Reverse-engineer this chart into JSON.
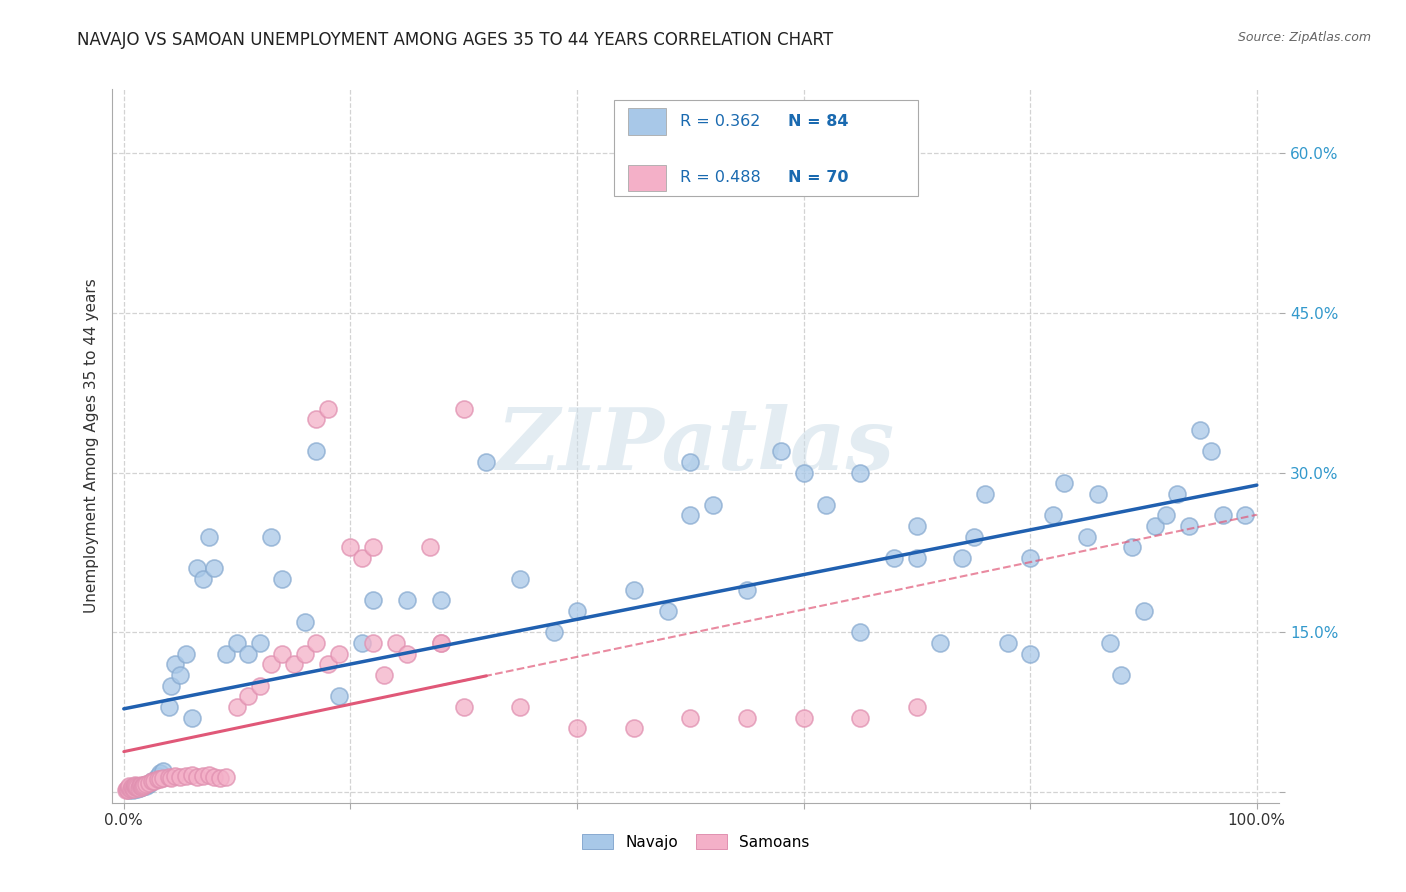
{
  "title": "NAVAJO VS SAMOAN UNEMPLOYMENT AMONG AGES 35 TO 44 YEARS CORRELATION CHART",
  "source": "Source: ZipAtlas.com",
  "ylabel": "Unemployment Among Ages 35 to 44 years",
  "xlim": [
    -0.01,
    1.02
  ],
  "ylim": [
    -0.01,
    0.66
  ],
  "navajo_R": 0.362,
  "navajo_N": 84,
  "samoan_R": 0.488,
  "samoan_N": 70,
  "navajo_color": "#a8c8e8",
  "navajo_edge": "#88aad0",
  "samoan_color": "#f4b0c8",
  "samoan_edge": "#e090b0",
  "navajo_line_color": "#2060b0",
  "samoan_line_color": "#e05878",
  "background_color": "#ffffff",
  "grid_color": "#c8c8c8",
  "navajo_x": [
    0.005,
    0.005,
    0.006,
    0.007,
    0.008,
    0.01,
    0.01,
    0.012,
    0.013,
    0.014,
    0.015,
    0.016,
    0.018,
    0.02,
    0.022,
    0.025,
    0.028,
    0.03,
    0.032,
    0.035,
    0.04,
    0.042,
    0.045,
    0.05,
    0.055,
    0.06,
    0.065,
    0.07,
    0.075,
    0.08,
    0.09,
    0.1,
    0.11,
    0.12,
    0.13,
    0.14,
    0.16,
    0.17,
    0.19,
    0.21,
    0.22,
    0.25,
    0.28,
    0.35,
    0.38,
    0.4,
    0.45,
    0.48,
    0.5,
    0.52,
    0.55,
    0.58,
    0.6,
    0.62,
    0.65,
    0.65,
    0.68,
    0.7,
    0.7,
    0.72,
    0.74,
    0.75,
    0.76,
    0.78,
    0.8,
    0.8,
    0.82,
    0.83,
    0.85,
    0.86,
    0.87,
    0.88,
    0.89,
    0.9,
    0.91,
    0.92,
    0.93,
    0.94,
    0.95,
    0.96,
    0.97,
    0.99,
    0.5,
    0.32
  ],
  "navajo_y": [
    0.002,
    0.004,
    0.003,
    0.005,
    0.002,
    0.004,
    0.006,
    0.003,
    0.005,
    0.004,
    0.006,
    0.005,
    0.007,
    0.006,
    0.008,
    0.01,
    0.012,
    0.015,
    0.018,
    0.02,
    0.08,
    0.1,
    0.12,
    0.11,
    0.13,
    0.07,
    0.21,
    0.2,
    0.24,
    0.21,
    0.13,
    0.14,
    0.13,
    0.14,
    0.24,
    0.2,
    0.16,
    0.32,
    0.09,
    0.14,
    0.18,
    0.18,
    0.18,
    0.2,
    0.15,
    0.17,
    0.19,
    0.17,
    0.26,
    0.27,
    0.19,
    0.32,
    0.3,
    0.27,
    0.15,
    0.3,
    0.22,
    0.22,
    0.25,
    0.14,
    0.22,
    0.24,
    0.28,
    0.14,
    0.13,
    0.22,
    0.26,
    0.29,
    0.24,
    0.28,
    0.14,
    0.11,
    0.23,
    0.17,
    0.25,
    0.26,
    0.28,
    0.25,
    0.34,
    0.32,
    0.26,
    0.26,
    0.31,
    0.31
  ],
  "samoan_x": [
    0.002,
    0.003,
    0.004,
    0.005,
    0.005,
    0.006,
    0.007,
    0.008,
    0.009,
    0.01,
    0.01,
    0.011,
    0.012,
    0.013,
    0.014,
    0.015,
    0.016,
    0.017,
    0.018,
    0.02,
    0.022,
    0.025,
    0.027,
    0.03,
    0.032,
    0.035,
    0.04,
    0.042,
    0.045,
    0.05,
    0.055,
    0.06,
    0.065,
    0.07,
    0.075,
    0.08,
    0.085,
    0.09,
    0.1,
    0.11,
    0.12,
    0.13,
    0.14,
    0.15,
    0.16,
    0.17,
    0.18,
    0.19,
    0.2,
    0.21,
    0.22,
    0.23,
    0.24,
    0.25,
    0.27,
    0.28,
    0.3,
    0.22,
    0.17,
    0.18,
    0.28,
    0.3,
    0.35,
    0.4,
    0.45,
    0.5,
    0.55,
    0.6,
    0.65,
    0.7
  ],
  "samoan_y": [
    0.002,
    0.003,
    0.002,
    0.004,
    0.006,
    0.003,
    0.005,
    0.004,
    0.003,
    0.005,
    0.007,
    0.006,
    0.005,
    0.004,
    0.006,
    0.007,
    0.005,
    0.006,
    0.007,
    0.008,
    0.009,
    0.01,
    0.01,
    0.012,
    0.012,
    0.013,
    0.014,
    0.013,
    0.015,
    0.014,
    0.015,
    0.016,
    0.014,
    0.015,
    0.016,
    0.014,
    0.013,
    0.014,
    0.08,
    0.09,
    0.1,
    0.12,
    0.13,
    0.12,
    0.13,
    0.14,
    0.12,
    0.13,
    0.23,
    0.22,
    0.14,
    0.11,
    0.14,
    0.13,
    0.23,
    0.14,
    0.36,
    0.23,
    0.35,
    0.36,
    0.14,
    0.08,
    0.08,
    0.06,
    0.06,
    0.07,
    0.07,
    0.07,
    0.07,
    0.08
  ]
}
